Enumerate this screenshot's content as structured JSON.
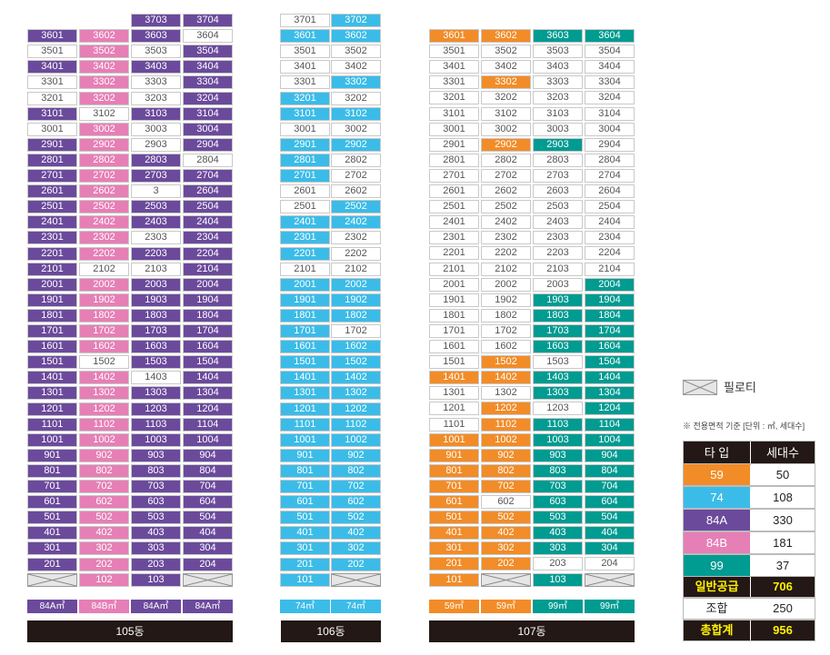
{
  "colors": {
    "type84A": "#6b4a9c",
    "type84B": "#e67fb5",
    "type74": "#3bbce8",
    "type59": "#f28c28",
    "type99": "#009b91",
    "white": "#ffffff",
    "dark": "#231815",
    "gold": "#fff100"
  },
  "buildings": [
    {
      "name": "105동",
      "bar_label": "105동",
      "types": [
        "84A㎡",
        "84B㎡",
        "84A㎡",
        "84A㎡"
      ],
      "type_colors": [
        "84A",
        "84B",
        "84A",
        "84A"
      ]
    },
    {
      "name": "106동",
      "bar_label": "106동",
      "types": [
        "74㎡",
        "74㎡"
      ],
      "type_colors": [
        "74",
        "74"
      ]
    },
    {
      "name": "107동",
      "bar_label": "107동",
      "types": [
        "59㎡",
        "59㎡",
        "99㎡",
        "99㎡"
      ],
      "type_colors": [
        "59",
        "59",
        "99",
        "99"
      ]
    }
  ],
  "units": {
    "b105": [
      [
        "",
        "",
        "3703",
        "3704"
      ],
      [
        "3601",
        "3602",
        "3603",
        "3604"
      ],
      [
        "3501",
        "3502",
        "3503",
        "3504"
      ],
      [
        "3401",
        "3402",
        "3403",
        "3404"
      ],
      [
        "3301",
        "3302",
        "3303",
        "3304"
      ],
      [
        "3201",
        "3202",
        "3203",
        "3204"
      ],
      [
        "3101",
        "3102",
        "3103",
        "3104"
      ],
      [
        "3001",
        "3002",
        "3003",
        "3004"
      ],
      [
        "2901",
        "2902",
        "2903",
        "2904"
      ],
      [
        "2801",
        "2802",
        "2803",
        "2804"
      ],
      [
        "2701",
        "2702",
        "2703",
        "2704"
      ],
      [
        "2601",
        "2602",
        "3",
        "2604"
      ],
      [
        "2501",
        "2502",
        "2503",
        "2504"
      ],
      [
        "2401",
        "2402",
        "2403",
        "2404"
      ],
      [
        "2301",
        "2302",
        "2303",
        "2304"
      ],
      [
        "2201",
        "2202",
        "2203",
        "2204"
      ],
      [
        "2101",
        "2102",
        "2103",
        "2104"
      ],
      [
        "2001",
        "2002",
        "2003",
        "2004"
      ],
      [
        "1901",
        "1902",
        "1903",
        "1904"
      ],
      [
        "1801",
        "1802",
        "1803",
        "1804"
      ],
      [
        "1701",
        "1702",
        "1703",
        "1704"
      ],
      [
        "1601",
        "1602",
        "1603",
        "1604"
      ],
      [
        "1501",
        "1502",
        "1503",
        "1504"
      ],
      [
        "1401",
        "1402",
        "1403",
        "1404"
      ],
      [
        "1301",
        "1302",
        "1303",
        "1304"
      ],
      [
        "1201",
        "1202",
        "1203",
        "1204"
      ],
      [
        "1101",
        "1102",
        "1103",
        "1104"
      ],
      [
        "1001",
        "1002",
        "1003",
        "1004"
      ],
      [
        "901",
        "902",
        "903",
        "904"
      ],
      [
        "801",
        "802",
        "803",
        "804"
      ],
      [
        "701",
        "702",
        "703",
        "704"
      ],
      [
        "601",
        "602",
        "603",
        "604"
      ],
      [
        "501",
        "502",
        "503",
        "504"
      ],
      [
        "401",
        "402",
        "403",
        "404"
      ],
      [
        "301",
        "302",
        "303",
        "304"
      ],
      [
        "201",
        "202",
        "203",
        "204"
      ],
      [
        "",
        "102",
        "103",
        ""
      ]
    ],
    "b105_colors": [
      [
        "N",
        "N",
        "A",
        "A"
      ],
      [
        "A",
        "B",
        "A",
        "W"
      ],
      [
        "W",
        "B",
        "W",
        "A"
      ],
      [
        "A",
        "B",
        "A",
        "A"
      ],
      [
        "W",
        "B",
        "W",
        "A"
      ],
      [
        "W",
        "B",
        "W",
        "A"
      ],
      [
        "A",
        "W",
        "A",
        "A"
      ],
      [
        "W",
        "B",
        "W",
        "A"
      ],
      [
        "A",
        "B",
        "W",
        "A"
      ],
      [
        "A",
        "B",
        "A",
        "W"
      ],
      [
        "A",
        "B",
        "A",
        "A"
      ],
      [
        "A",
        "B",
        "W",
        "A"
      ],
      [
        "A",
        "B",
        "A",
        "A"
      ],
      [
        "A",
        "B",
        "A",
        "A"
      ],
      [
        "A",
        "B",
        "W",
        "A"
      ],
      [
        "A",
        "B",
        "A",
        "A"
      ],
      [
        "A",
        "W",
        "W",
        "A"
      ],
      [
        "A",
        "B",
        "A",
        "A"
      ],
      [
        "A",
        "B",
        "A",
        "A"
      ],
      [
        "A",
        "B",
        "A",
        "A"
      ],
      [
        "A",
        "B",
        "A",
        "A"
      ],
      [
        "A",
        "B",
        "A",
        "A"
      ],
      [
        "A",
        "W",
        "A",
        "A"
      ],
      [
        "A",
        "B",
        "W",
        "A"
      ],
      [
        "A",
        "B",
        "A",
        "A"
      ],
      [
        "A",
        "B",
        "A",
        "A"
      ],
      [
        "A",
        "B",
        "A",
        "A"
      ],
      [
        "A",
        "B",
        "A",
        "A"
      ],
      [
        "A",
        "B",
        "A",
        "A"
      ],
      [
        "A",
        "B",
        "A",
        "A"
      ],
      [
        "A",
        "B",
        "A",
        "A"
      ],
      [
        "A",
        "B",
        "A",
        "A"
      ],
      [
        "A",
        "B",
        "A",
        "A"
      ],
      [
        "A",
        "B",
        "A",
        "A"
      ],
      [
        "A",
        "B",
        "A",
        "A"
      ],
      [
        "A",
        "B",
        "A",
        "A"
      ],
      [
        "P",
        "B",
        "A",
        "P"
      ]
    ],
    "b106": [
      [
        "3701",
        "3702"
      ],
      [
        "3601",
        "3602"
      ],
      [
        "3501",
        "3502"
      ],
      [
        "3401",
        "3402"
      ],
      [
        "3301",
        "3302"
      ],
      [
        "3201",
        "3202"
      ],
      [
        "3101",
        "3102"
      ],
      [
        "3001",
        "3002"
      ],
      [
        "2901",
        "2902"
      ],
      [
        "2801",
        "2802"
      ],
      [
        "2701",
        "2702"
      ],
      [
        "2601",
        "2602"
      ],
      [
        "2501",
        "2502"
      ],
      [
        "2401",
        "2402"
      ],
      [
        "2301",
        "2302"
      ],
      [
        "2201",
        "2202"
      ],
      [
        "2101",
        "2102"
      ],
      [
        "2001",
        "2002"
      ],
      [
        "1901",
        "1902"
      ],
      [
        "1801",
        "1802"
      ],
      [
        "1701",
        "1702"
      ],
      [
        "1601",
        "1602"
      ],
      [
        "1501",
        "1502"
      ],
      [
        "1401",
        "1402"
      ],
      [
        "1301",
        "1302"
      ],
      [
        "1201",
        "1202"
      ],
      [
        "1101",
        "1102"
      ],
      [
        "1001",
        "1002"
      ],
      [
        "901",
        "902"
      ],
      [
        "801",
        "802"
      ],
      [
        "701",
        "702"
      ],
      [
        "601",
        "602"
      ],
      [
        "501",
        "502"
      ],
      [
        "401",
        "402"
      ],
      [
        "301",
        "302"
      ],
      [
        "201",
        "202"
      ],
      [
        "101",
        ""
      ]
    ],
    "b106_colors": [
      [
        "W",
        "C"
      ],
      [
        "C",
        "C"
      ],
      [
        "W",
        "W"
      ],
      [
        "W",
        "W"
      ],
      [
        "W",
        "C"
      ],
      [
        "C",
        "W"
      ],
      [
        "C",
        "C"
      ],
      [
        "W",
        "W"
      ],
      [
        "C",
        "C"
      ],
      [
        "C",
        "W"
      ],
      [
        "C",
        "W"
      ],
      [
        "W",
        "W"
      ],
      [
        "W",
        "C"
      ],
      [
        "C",
        "C"
      ],
      [
        "C",
        "W"
      ],
      [
        "C",
        "W"
      ],
      [
        "W",
        "W"
      ],
      [
        "C",
        "C"
      ],
      [
        "C",
        "C"
      ],
      [
        "C",
        "C"
      ],
      [
        "C",
        "W"
      ],
      [
        "C",
        "C"
      ],
      [
        "C",
        "C"
      ],
      [
        "C",
        "C"
      ],
      [
        "C",
        "C"
      ],
      [
        "C",
        "C"
      ],
      [
        "C",
        "C"
      ],
      [
        "C",
        "C"
      ],
      [
        "C",
        "C"
      ],
      [
        "C",
        "C"
      ],
      [
        "C",
        "C"
      ],
      [
        "C",
        "C"
      ],
      [
        "C",
        "C"
      ],
      [
        "C",
        "C"
      ],
      [
        "C",
        "C"
      ],
      [
        "C",
        "C"
      ],
      [
        "C",
        "P"
      ]
    ],
    "b107": [
      [
        "3601",
        "3602",
        "3603",
        "3604"
      ],
      [
        "3501",
        "3502",
        "3503",
        "3504"
      ],
      [
        "3401",
        "3402",
        "3403",
        "3404"
      ],
      [
        "3301",
        "3302",
        "3303",
        "3304"
      ],
      [
        "3201",
        "3202",
        "3203",
        "3204"
      ],
      [
        "3101",
        "3102",
        "3103",
        "3104"
      ],
      [
        "3001",
        "3002",
        "3003",
        "3004"
      ],
      [
        "2901",
        "2902",
        "2903",
        "2904"
      ],
      [
        "2801",
        "2802",
        "2803",
        "2804"
      ],
      [
        "2701",
        "2702",
        "2703",
        "2704"
      ],
      [
        "2601",
        "2602",
        "2603",
        "2604"
      ],
      [
        "2501",
        "2502",
        "2503",
        "2504"
      ],
      [
        "2401",
        "2402",
        "2403",
        "2404"
      ],
      [
        "2301",
        "2302",
        "2303",
        "2304"
      ],
      [
        "2201",
        "2202",
        "2203",
        "2204"
      ],
      [
        "2101",
        "2102",
        "2103",
        "2104"
      ],
      [
        "2001",
        "2002",
        "2003",
        "2004"
      ],
      [
        "1901",
        "1902",
        "1903",
        "1904"
      ],
      [
        "1801",
        "1802",
        "1803",
        "1804"
      ],
      [
        "1701",
        "1702",
        "1703",
        "1704"
      ],
      [
        "1601",
        "1602",
        "1603",
        "1604"
      ],
      [
        "1501",
        "1502",
        "1503",
        "1504"
      ],
      [
        "1401",
        "1402",
        "1403",
        "1404"
      ],
      [
        "1301",
        "1302",
        "1303",
        "1304"
      ],
      [
        "1201",
        "1202",
        "1203",
        "1204"
      ],
      [
        "1101",
        "1102",
        "1103",
        "1104"
      ],
      [
        "1001",
        "1002",
        "1003",
        "1004"
      ],
      [
        "901",
        "902",
        "903",
        "904"
      ],
      [
        "801",
        "802",
        "803",
        "804"
      ],
      [
        "701",
        "702",
        "703",
        "704"
      ],
      [
        "601",
        "602",
        "603",
        "604"
      ],
      [
        "501",
        "502",
        "503",
        "504"
      ],
      [
        "401",
        "402",
        "403",
        "404"
      ],
      [
        "301",
        "302",
        "303",
        "304"
      ],
      [
        "201",
        "202",
        "203",
        "204"
      ],
      [
        "101",
        "",
        "103",
        ""
      ]
    ],
    "b107_colors": [
      [
        "O",
        "O",
        "T",
        "T"
      ],
      [
        "W",
        "W",
        "W",
        "W"
      ],
      [
        "W",
        "W",
        "W",
        "W"
      ],
      [
        "W",
        "O",
        "W",
        "W"
      ],
      [
        "W",
        "W",
        "W",
        "W"
      ],
      [
        "W",
        "W",
        "W",
        "W"
      ],
      [
        "W",
        "W",
        "W",
        "W"
      ],
      [
        "W",
        "O",
        "T",
        "W"
      ],
      [
        "W",
        "W",
        "W",
        "W"
      ],
      [
        "W",
        "W",
        "W",
        "W"
      ],
      [
        "W",
        "W",
        "W",
        "W"
      ],
      [
        "W",
        "W",
        "W",
        "W"
      ],
      [
        "W",
        "W",
        "W",
        "W"
      ],
      [
        "W",
        "W",
        "W",
        "W"
      ],
      [
        "W",
        "W",
        "W",
        "W"
      ],
      [
        "W",
        "W",
        "W",
        "W"
      ],
      [
        "W",
        "W",
        "W",
        "T"
      ],
      [
        "W",
        "W",
        "T",
        "T"
      ],
      [
        "W",
        "W",
        "T",
        "T"
      ],
      [
        "W",
        "W",
        "T",
        "T"
      ],
      [
        "W",
        "W",
        "T",
        "T"
      ],
      [
        "W",
        "O",
        "W",
        "T"
      ],
      [
        "O",
        "O",
        "T",
        "T"
      ],
      [
        "W",
        "W",
        "T",
        "T"
      ],
      [
        "W",
        "O",
        "W",
        "T"
      ],
      [
        "W",
        "O",
        "T",
        "T"
      ],
      [
        "O",
        "O",
        "T",
        "T"
      ],
      [
        "O",
        "O",
        "T",
        "T"
      ],
      [
        "O",
        "O",
        "T",
        "T"
      ],
      [
        "O",
        "O",
        "T",
        "T"
      ],
      [
        "O",
        "W",
        "T",
        "T"
      ],
      [
        "O",
        "O",
        "T",
        "T"
      ],
      [
        "O",
        "O",
        "T",
        "T"
      ],
      [
        "O",
        "O",
        "T",
        "T"
      ],
      [
        "O",
        "O",
        "W",
        "W"
      ],
      [
        "O",
        "P",
        "T",
        "P"
      ]
    ]
  },
  "legend": {
    "piloti_label": "필로티"
  },
  "summary": {
    "note": "※ 전용면적 기준 [단위 : ㎡, 세대수]",
    "header": [
      "타  입",
      "세대수"
    ],
    "rows": [
      {
        "type": "59",
        "count": "50",
        "color": "#f28c28"
      },
      {
        "type": "74",
        "count": "108",
        "color": "#3bbce8"
      },
      {
        "type": "84A",
        "count": "330",
        "color": "#6b4a9c"
      },
      {
        "type": "84B",
        "count": "181",
        "color": "#e67fb5"
      },
      {
        "type": "99",
        "count": "37",
        "color": "#009b91"
      }
    ],
    "general": {
      "label": "일반공급",
      "value": "706"
    },
    "union": {
      "label": "조합",
      "value": "250"
    },
    "total": {
      "label": "총합계",
      "value": "956"
    }
  }
}
